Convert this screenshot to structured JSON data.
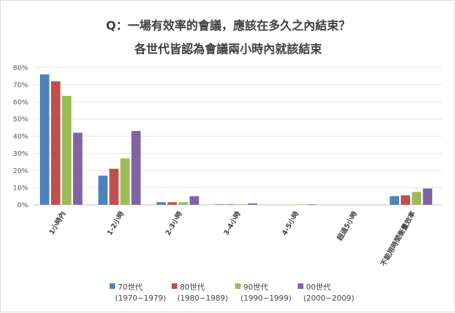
{
  "title_line1": "Q：一場有效率的會議，應該在多久之內結束？",
  "title_line2": "各世代皆認為會議兩小時內就該結束",
  "chart_data": {
    "type": "bar",
    "categories": [
      "1小時內",
      "1-2小時",
      "2-3小時",
      "3-4小時",
      "4-5小時",
      "超過5小時",
      "不能用時間衡量效率"
    ],
    "series": [
      {
        "name": "70世代",
        "years": "(1970~1979)",
        "color": "#4f81bd",
        "values": [
          76,
          17,
          1.5,
          0.3,
          0,
          0,
          5
        ]
      },
      {
        "name": "80世代",
        "years": "(1980~1989)",
        "color": "#c0504d",
        "values": [
          72,
          21,
          1.5,
          0.3,
          0,
          0,
          5.5
        ]
      },
      {
        "name": "90世代",
        "years": "(1990~1999)",
        "color": "#9bbb59",
        "values": [
          63.5,
          27,
          1.5,
          0.3,
          0.2,
          0,
          7.5
        ]
      },
      {
        "name": "00世代",
        "years": "(2000~2009)",
        "color": "#8064a2",
        "values": [
          42,
          43,
          5,
          0.8,
          0.3,
          0,
          9.5
        ]
      }
    ],
    "ylim": [
      0,
      80
    ],
    "yticks": [
      "0%",
      "10%",
      "20%",
      "30%",
      "40%",
      "50%",
      "60%",
      "70%",
      "80%"
    ],
    "grid": true,
    "legend": "bottom"
  }
}
